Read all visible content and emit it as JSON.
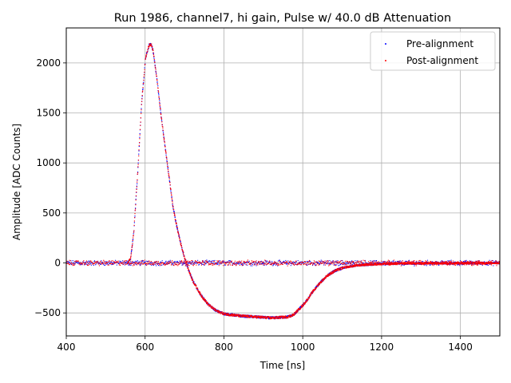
{
  "chart_data": {
    "type": "scatter",
    "title": "Run 1986, channel7, hi gain, Pulse w/ 40.0 dB Attenuation",
    "xlabel": "Time [ns]",
    "ylabel": "Amplitude [ADC Counts]",
    "xlim": [
      400,
      1500
    ],
    "ylim": [
      -730,
      2350
    ],
    "xticks": [
      400,
      600,
      800,
      1000,
      1200,
      1400
    ],
    "yticks": [
      -500,
      0,
      500,
      1000,
      1500,
      2000
    ],
    "ytick_labels": [
      "−500",
      "0",
      "500",
      "1000",
      "1500",
      "2000"
    ],
    "grid": true,
    "legend_position": "upper-right",
    "series": [
      {
        "name": "Pre-alignment",
        "color": "#0000ff",
        "marker": "point",
        "baseline_noise": 20,
        "pulse_x": [
          400,
          555,
          562,
          570,
          580,
          590,
          600,
          610,
          615,
          620,
          630,
          640,
          650,
          660,
          670,
          680,
          690,
          700,
          710,
          720,
          740,
          760,
          780,
          800,
          840,
          880,
          920,
          960,
          975,
          990,
          1000,
          1010,
          1020,
          1040,
          1060,
          1080,
          1100,
          1120,
          1150,
          1200,
          1260,
          1320,
          1400,
          1500
        ],
        "pulse_y": [
          0,
          0,
          40,
          300,
          900,
          1600,
          2050,
          2190,
          2180,
          2100,
          1800,
          1450,
          1150,
          850,
          550,
          350,
          180,
          40,
          -80,
          -180,
          -320,
          -420,
          -480,
          -510,
          -530,
          -540,
          -550,
          -540,
          -520,
          -460,
          -420,
          -370,
          -310,
          -210,
          -130,
          -80,
          -50,
          -35,
          -20,
          -10,
          -5,
          -3,
          -2,
          0
        ],
        "pulse_spread": 28
      },
      {
        "name": "Post-alignment",
        "color": "#ff0000",
        "marker": "point",
        "baseline_noise": 20,
        "pulse_x": [
          400,
          555,
          562,
          570,
          580,
          590,
          600,
          610,
          615,
          620,
          630,
          640,
          650,
          660,
          670,
          680,
          690,
          700,
          710,
          720,
          740,
          760,
          780,
          800,
          840,
          880,
          920,
          960,
          975,
          990,
          1000,
          1010,
          1020,
          1040,
          1060,
          1080,
          1100,
          1120,
          1150,
          1200,
          1260,
          1320,
          1400,
          1500
        ],
        "pulse_y": [
          0,
          0,
          40,
          300,
          900,
          1600,
          2050,
          2190,
          2180,
          2100,
          1800,
          1450,
          1150,
          850,
          550,
          350,
          180,
          40,
          -80,
          -180,
          -320,
          -420,
          -480,
          -510,
          -530,
          -540,
          -550,
          -540,
          -520,
          -460,
          -420,
          -370,
          -310,
          -210,
          -130,
          -80,
          -50,
          -35,
          -20,
          -10,
          -5,
          -3,
          -2,
          0
        ],
        "pulse_spread": 28
      }
    ]
  }
}
